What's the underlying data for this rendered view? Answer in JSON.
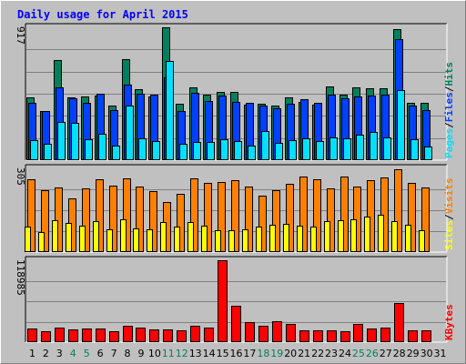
{
  "chart_data": {
    "type": "bar",
    "title": "Daily usage for April 2015",
    "categories": [
      "1",
      "2",
      "3",
      "4",
      "5",
      "6",
      "7",
      "8",
      "9",
      "10",
      "11",
      "12",
      "13",
      "14",
      "15",
      "16",
      "17",
      "18",
      "19",
      "20",
      "21",
      "22",
      "23",
      "24",
      "25",
      "26",
      "27",
      "28",
      "29",
      "30",
      "31"
    ],
    "weekend_days": [
      "4",
      "5",
      "11",
      "12",
      "18",
      "19",
      "25",
      "26"
    ],
    "colors": {
      "title": "#0000ff",
      "hits": "#00805c",
      "files": "#0040ff",
      "pages": "#00e0ff",
      "visits": "#ff8000",
      "sites": "#ffff00",
      "kbytes": "#ff0000",
      "weekend_label": "#00805c",
      "background": "#c0c0c0"
    },
    "panels": [
      {
        "id": "hits-files-pages",
        "max_label": "917",
        "ylim": [
          0,
          917
        ],
        "legend": [
          {
            "text": "Hits",
            "color": "#00805c"
          },
          {
            "text": "/",
            "color": "#000000"
          },
          {
            "text": "Files",
            "color": "#0040ff"
          },
          {
            "text": "/",
            "color": "#000000"
          },
          {
            "text": "Pages",
            "color": "#00e0ff"
          }
        ],
        "series": [
          {
            "name": "Hits",
            "color": "#00805c",
            "values": [
              435,
              338,
              692,
              432,
              437,
              444,
              375,
              700,
              488,
              441,
              917,
              388,
              502,
              451,
              472,
              473,
              384,
              392,
              379,
              432,
              400,
              385,
              509,
              451,
              501,
              499,
              498,
              906,
              397,
              398,
              0
            ]
          },
          {
            "name": "Files",
            "color": "#0040ff",
            "values": [
              393,
              338,
              504,
              428,
              398,
              458,
              345,
              523,
              456,
              453,
              569,
              337,
              465,
              411,
              447,
              400,
              395,
              378,
              357,
              392,
              423,
              395,
              451,
              427,
              442,
              446,
              450,
              837,
              379,
              348,
              0
            ]
          },
          {
            "name": "Pages",
            "color": "#00e0ff",
            "values": [
              140,
              112,
              263,
              255,
              144,
              183,
              101,
              375,
              153,
              135,
              684,
              115,
              126,
              124,
              142,
              134,
              103,
              204,
              117,
              138,
              148,
              135,
              157,
              152,
              175,
              192,
              157,
              486,
              145,
              97,
              0
            ]
          }
        ]
      },
      {
        "id": "visits-sites",
        "max_label": "305",
        "ylim": [
          0,
          305
        ],
        "legend": [
          {
            "text": "Visits",
            "color": "#ff8000"
          },
          {
            "text": "/",
            "color": "#000000"
          },
          {
            "text": "Sites",
            "color": "#ffff00"
          }
        ],
        "series": [
          {
            "name": "Visits",
            "color": "#ff8000",
            "values": [
              264,
              225,
              234,
              196,
              232,
              264,
              243,
              270,
              239,
              222,
              183,
              213,
              270,
              252,
              256,
              261,
              240,
              207,
              224,
              247,
              276,
              264,
              232,
              275,
              240,
              262,
              271,
              301,
              251,
              234,
              0
            ]
          },
          {
            "name": "Sites",
            "color": "#ffff00",
            "values": [
              93,
              74,
              116,
              107,
              97,
              113,
              82,
              118,
              86,
              83,
              110,
              94,
              108,
              97,
              81,
              81,
              84,
              93,
              99,
              104,
              95,
              94,
              113,
              117,
              120,
              128,
              135,
              112,
              98,
              80,
              0
            ]
          }
        ]
      },
      {
        "id": "kbytes",
        "max_label": "118985",
        "ylim": [
          0,
          118985
        ],
        "legend": [
          {
            "text": "KBytes",
            "color": "#ff0000"
          }
        ],
        "series": [
          {
            "name": "KBytes",
            "color": "#ff0000",
            "values": [
              19500,
              16300,
              20700,
              18700,
              19500,
              19400,
              16100,
              23200,
              20600,
              17900,
              18700,
              16900,
              23400,
              21500,
              118985,
              53500,
              29100,
              23500,
              30500,
              25900,
              17100,
              17400,
              17600,
              15300,
              25800,
              19500,
              21400,
              56300,
              17200,
              17300,
              0
            ]
          }
        ]
      }
    ]
  }
}
